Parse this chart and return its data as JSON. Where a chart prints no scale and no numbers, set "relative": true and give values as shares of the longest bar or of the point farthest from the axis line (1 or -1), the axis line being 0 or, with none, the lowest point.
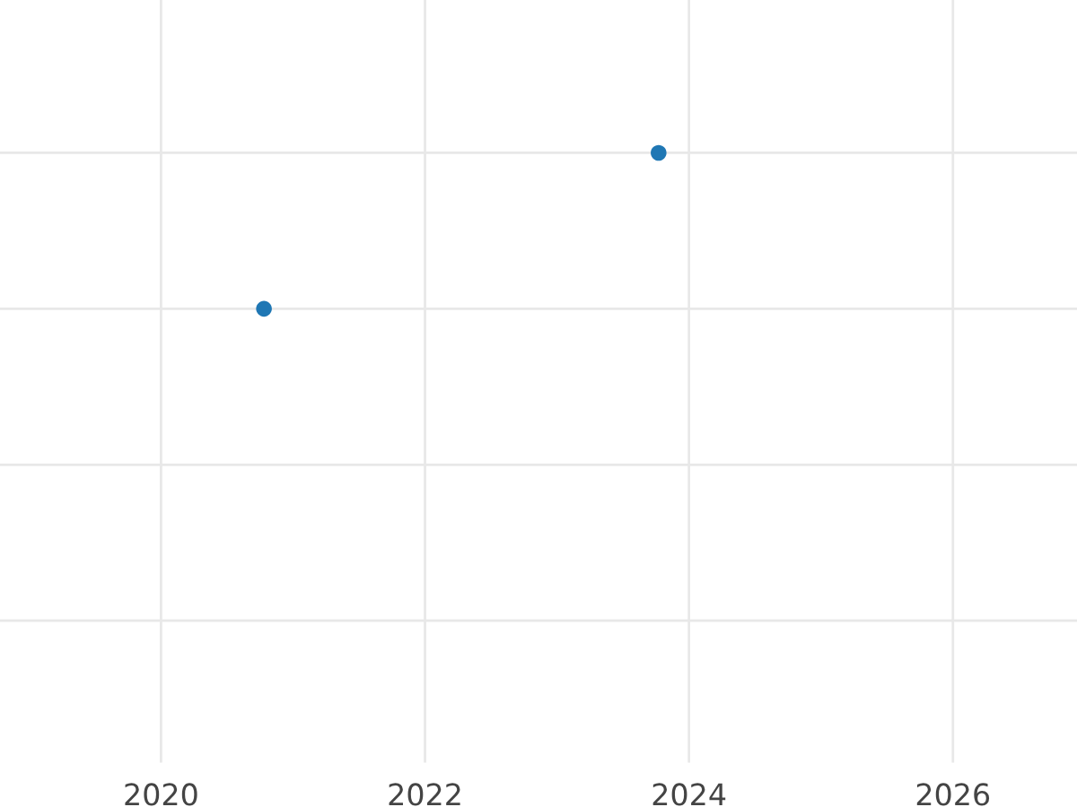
{
  "chart_data": {
    "type": "scatter",
    "relative": true,
    "x": [
      2020.78,
      2023.77
    ],
    "series": [
      {
        "color": "#1f77b4",
        "values": [
          0,
          1
        ]
      }
    ],
    "xlim": [
      2018.78,
      2026.94
    ],
    "xticks": [
      2020,
      2022,
      2024,
      2026
    ],
    "grid": true,
    "marker": "circle"
  }
}
